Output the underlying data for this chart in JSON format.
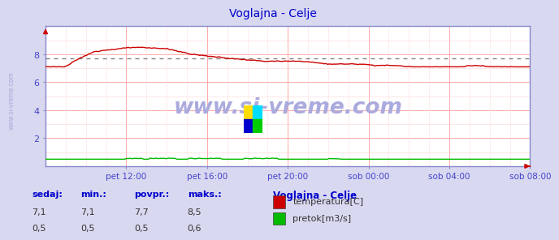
{
  "title": "Voglajna - Celje",
  "title_color": "#0000cc",
  "bg_color": "#d8d8f0",
  "plot_bg_color": "#ffffff",
  "grid_color_major": "#ffaaaa",
  "grid_color_minor": "#ffdddd",
  "tick_color": "#4444cc",
  "ylim": [
    0,
    10
  ],
  "ytick_vals": [
    2,
    4,
    6,
    8
  ],
  "xtick_labels": [
    "pet 12:00",
    "pet 16:00",
    "pet 20:00",
    "sob 00:00",
    "sob 04:00",
    "sob 08:00"
  ],
  "n_points": 288,
  "temp_color": "#cc0000",
  "flow_color": "#00bb00",
  "avg_line_color": "#777777",
  "avg_value": 7.7,
  "temp_sedaj": "7,1",
  "temp_min": "7,1",
  "temp_avg": "7,7",
  "temp_max": "8,5",
  "flow_sedaj": "0,5",
  "flow_min": "0,5",
  "flow_avg": "0,5",
  "flow_max": "0,6",
  "watermark_text": "www.si-vreme.com",
  "watermark_color": "#aaaadd",
  "side_text": "www.si-vreme.com",
  "legend_title": "Voglajna - Celje",
  "legend_title_color": "#0000cc",
  "legend_items": [
    "temperatura[C]",
    "pretok[m3/s]"
  ],
  "legend_colors": [
    "#cc0000",
    "#00bb00"
  ],
  "table_headers": [
    "sedaj:",
    "min.:",
    "povpr.:",
    "maks.:"
  ],
  "table_color": "#0000cc",
  "spine_color": "#8888cc",
  "arrow_color": "#cc0000"
}
